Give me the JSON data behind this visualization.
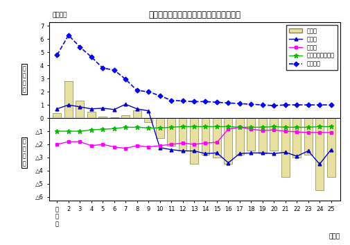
{
  "title": "日本人の主な移動理由別転入転出差の推移",
  "xlabel_unit": "（年）",
  "ylabel_unit": "（千人）",
  "x_labels": [
    "平\n成\n元",
    "2",
    "3",
    "4",
    "5",
    "6",
    "7",
    "8",
    "9",
    "10",
    "11",
    "12",
    "13",
    "14",
    "15",
    "16",
    "17",
    "18",
    "19",
    "20",
    "21",
    "22",
    "23",
    "24",
    "25"
  ],
  "years": [
    1,
    2,
    3,
    4,
    5,
    6,
    7,
    8,
    9,
    10,
    11,
    12,
    13,
    14,
    15,
    16,
    17,
    18,
    19,
    20,
    21,
    22,
    23,
    24,
    25
  ],
  "bar_data": [
    0.4,
    2.8,
    1.35,
    0.5,
    0.1,
    0.05,
    0.2,
    0.6,
    -0.3,
    -1.5,
    -2.1,
    -2.5,
    -3.5,
    -2.8,
    -3.0,
    -3.5,
    -2.8,
    -2.5,
    -2.7,
    -2.5,
    -4.5,
    -3.0,
    -2.8,
    -5.5,
    -4.5
  ],
  "jobwork_data": [
    0.7,
    1.0,
    0.85,
    0.7,
    0.75,
    0.65,
    1.05,
    0.7,
    0.55,
    -2.25,
    -2.4,
    -2.5,
    -2.5,
    -2.7,
    -2.65,
    -3.4,
    -2.7,
    -2.65,
    -2.65,
    -2.7,
    -2.6,
    -2.9,
    -2.5,
    -3.5,
    -2.4
  ],
  "school_data": [
    -2.0,
    -1.8,
    -1.8,
    -2.1,
    -2.0,
    -2.2,
    -2.3,
    -2.1,
    -2.2,
    -2.1,
    -2.0,
    -1.9,
    -2.0,
    -1.9,
    -1.85,
    -0.85,
    -0.7,
    -0.85,
    -0.95,
    -0.9,
    -1.0,
    -1.05,
    -1.1,
    -1.1,
    -1.1
  ],
  "marriage_data": [
    -1.0,
    -1.0,
    -1.0,
    -0.9,
    -0.85,
    -0.8,
    -0.7,
    -0.7,
    -0.75,
    -0.75,
    -0.7,
    -0.65,
    -0.65,
    -0.65,
    -0.65,
    -0.65,
    -0.7,
    -0.7,
    -0.7,
    -0.65,
    -0.7,
    -0.7,
    -0.7,
    -0.65,
    -0.65
  ],
  "housing_data": [
    4.8,
    6.3,
    5.4,
    4.65,
    3.8,
    3.65,
    2.95,
    2.1,
    2.0,
    1.7,
    1.35,
    1.3,
    1.25,
    1.25,
    1.2,
    1.15,
    1.1,
    1.05,
    1.0,
    0.95,
    1.0,
    1.0,
    1.0,
    1.0,
    1.0
  ],
  "bar_color": "#e8e0a0",
  "bar_edge_color": "#888840",
  "jobwork_color": "#0000cc",
  "school_color": "#ff00ff",
  "marriage_color": "#00bb00",
  "housing_color": "#0000ff",
  "legend_labels": [
    "合　計",
    "職業上",
    "学業上",
    "結婚・離婚・縁組",
    "住宅事情"
  ],
  "yticks_pos": [
    0,
    1,
    2,
    3,
    4,
    5,
    6,
    7
  ],
  "yticks_neg": [
    -1,
    -2,
    -3,
    -4,
    -5,
    -6
  ]
}
